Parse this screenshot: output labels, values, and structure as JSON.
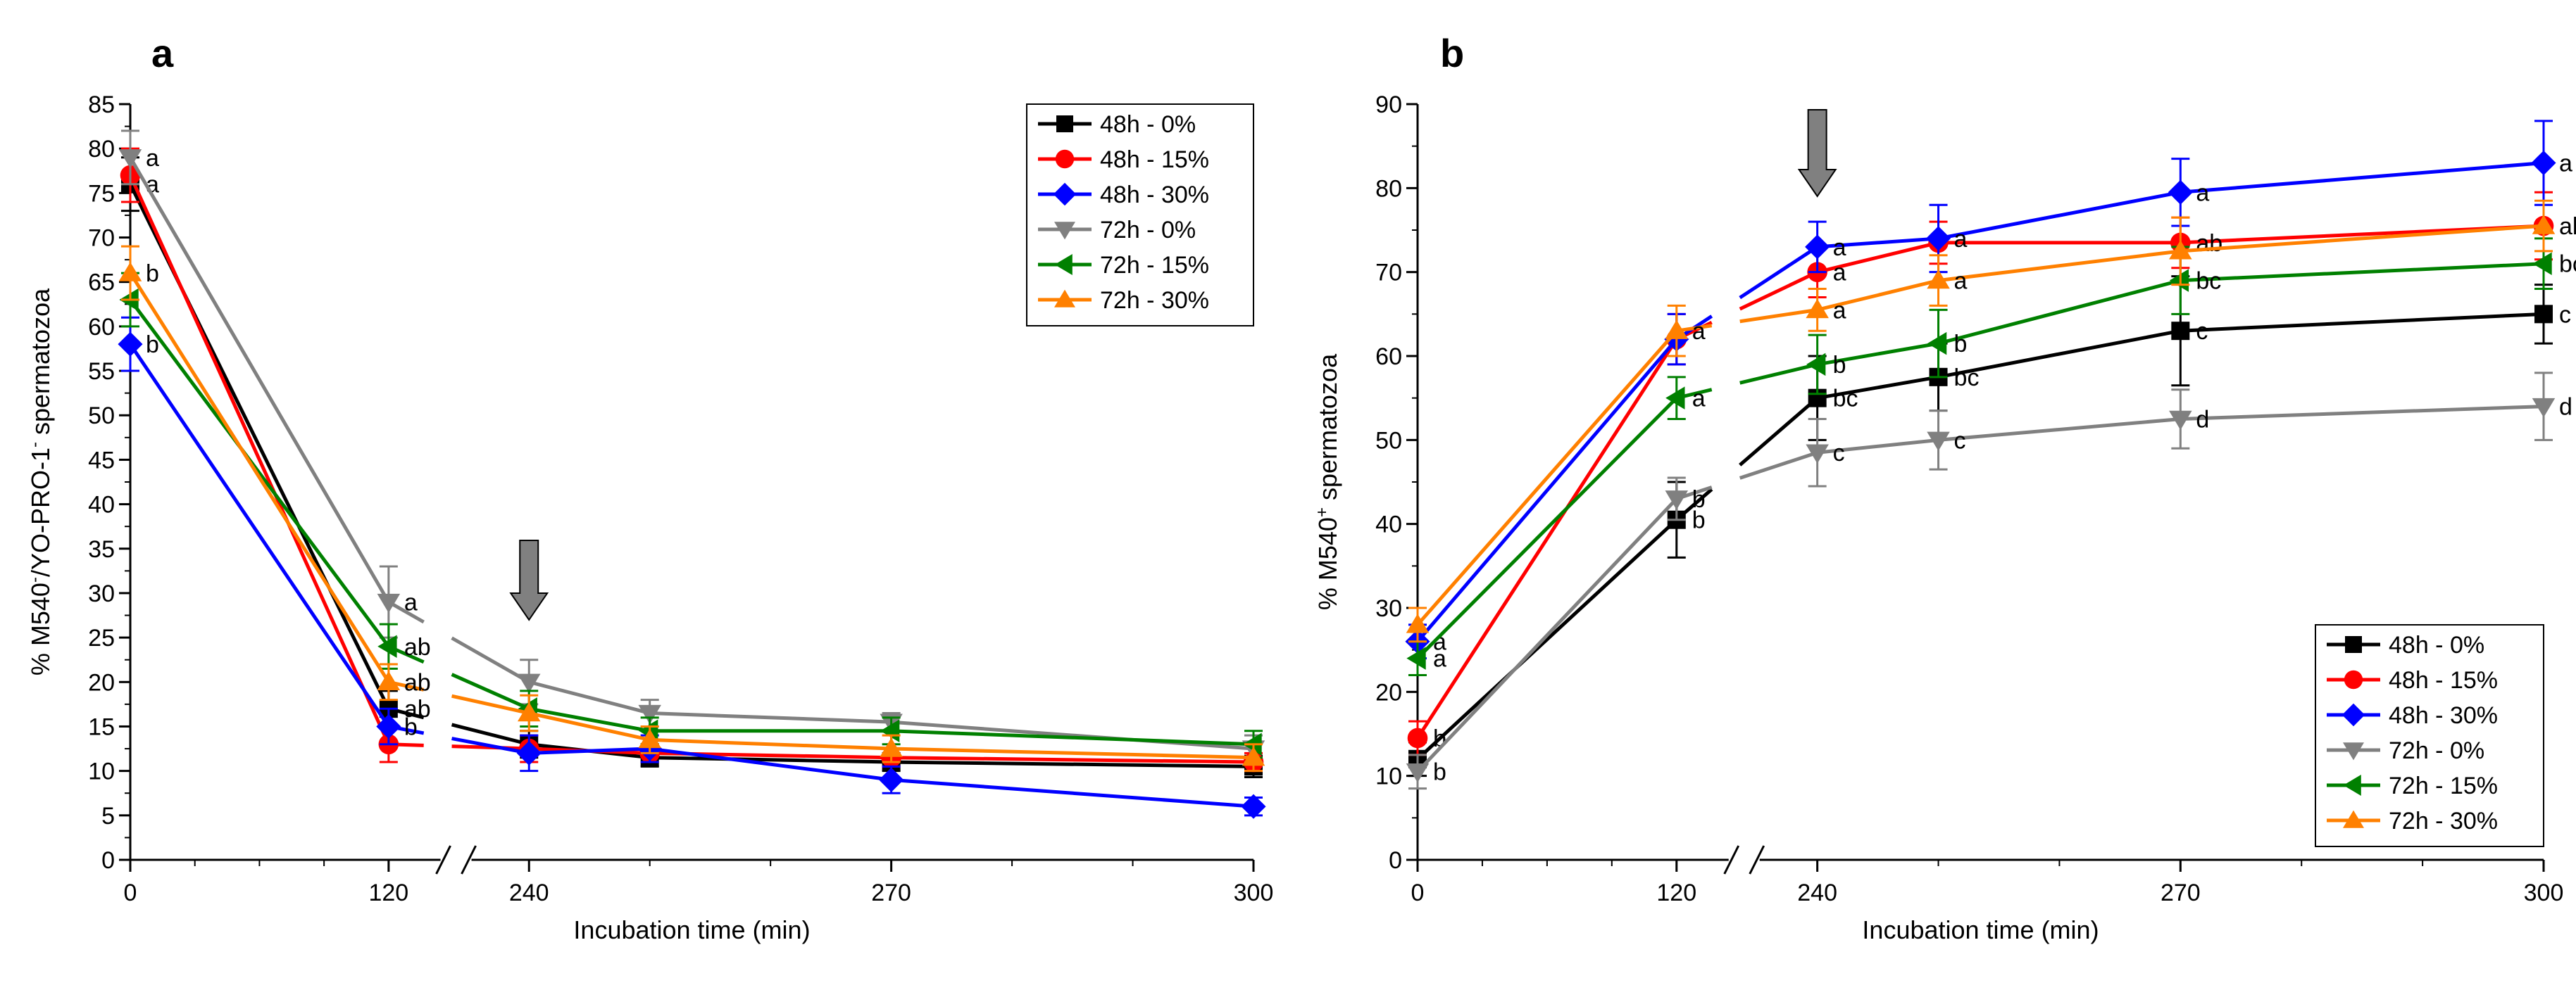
{
  "colors": {
    "48h - 0%": "#000000",
    "48h - 15%": "#ff0000",
    "48h - 30%": "#0000ff",
    "72h - 0%": "#808080",
    "72h - 15%": "#008000",
    "72h - 30%": "#ff8000",
    "arrow": "#808080"
  },
  "chart_data": [
    {
      "type": "line",
      "panel": "a",
      "title": "",
      "xlabel": "Incubation time (min)",
      "ylabel": "% M540⁻/YO-PRO-1⁻ spermatozoa",
      "ylabel_parts": [
        "% M540",
        "-",
        "/YO-PRO-1",
        "-",
        " spermatozoa"
      ],
      "ylim": [
        0,
        85
      ],
      "yticks": [
        0,
        5,
        10,
        15,
        20,
        25,
        30,
        35,
        40,
        45,
        50,
        55,
        60,
        65,
        70,
        75,
        80,
        85
      ],
      "x_tick_labels": [
        "0",
        "120",
        "240",
        "270",
        "300"
      ],
      "x_break": "between 120 and 240",
      "grid": false,
      "legend_position": "top-right",
      "arrow_at_x": 240,
      "series": [
        {
          "name": "48h - 0%",
          "marker": "square",
          "x": [
            0,
            120,
            240,
            250,
            270,
            300
          ],
          "values": [
            76,
            17,
            13,
            11.5,
            11,
            10.5
          ],
          "err": [
            3,
            2,
            1.5,
            1,
            1,
            1.2
          ],
          "labels": [
            "a",
            "ab",
            "",
            "",
            "",
            ""
          ]
        },
        {
          "name": "48h - 15%",
          "marker": "circle",
          "x": [
            0,
            120,
            240,
            250,
            270,
            300
          ],
          "values": [
            77,
            13,
            12.5,
            12,
            11.5,
            11
          ],
          "err": [
            3,
            2,
            1.5,
            1,
            1,
            1
          ]
        },
        {
          "name": "48h - 30%",
          "marker": "diamond",
          "x": [
            0,
            120,
            240,
            250,
            270,
            300
          ],
          "values": [
            58,
            15,
            12,
            12.5,
            9,
            6
          ],
          "err": [
            3,
            2,
            2,
            1.5,
            1.5,
            1
          ],
          "labels": [
            "b",
            "b",
            "",
            "",
            "",
            ""
          ]
        },
        {
          "name": "72h - 0%",
          "marker": "triangle-down",
          "x": [
            0,
            120,
            240,
            250,
            270,
            300
          ],
          "values": [
            79,
            29,
            20,
            16.5,
            15.5,
            12.5
          ],
          "err": [
            3,
            4,
            2.5,
            1.5,
            1,
            1.5
          ],
          "labels": [
            "a",
            "a",
            "",
            "",
            "",
            ""
          ]
        },
        {
          "name": "72h - 15%",
          "marker": "triangle-left",
          "x": [
            0,
            120,
            240,
            250,
            270,
            300
          ],
          "values": [
            63,
            24,
            17,
            14.5,
            14.5,
            13
          ],
          "err": [
            3,
            2.5,
            2,
            1.5,
            1.5,
            1.5
          ],
          "labels": [
            "",
            "ab",
            "",
            "",
            "",
            ""
          ]
        },
        {
          "name": "72h - 30%",
          "marker": "triangle-up",
          "x": [
            0,
            120,
            240,
            250,
            270,
            300
          ],
          "values": [
            66,
            20,
            16.5,
            13.5,
            12.5,
            11.5
          ],
          "err": [
            3,
            2,
            2,
            1.5,
            1.5,
            1.5
          ],
          "labels": [
            "b",
            "ab",
            "",
            "",
            "",
            ""
          ]
        }
      ]
    },
    {
      "type": "line",
      "panel": "b",
      "title": "",
      "xlabel": "Incubation time (min)",
      "ylabel": "% M540⁺ spermatozoa",
      "ylabel_parts": [
        "% M540",
        "+",
        " spermatozoa"
      ],
      "ylim": [
        0,
        90
      ],
      "yticks": [
        0,
        10,
        20,
        30,
        40,
        50,
        60,
        70,
        80,
        90
      ],
      "x_tick_labels": [
        "0",
        "120",
        "240",
        "270",
        "300"
      ],
      "x_break": "between 120 and 240",
      "grid": false,
      "legend_position": "bottom-right",
      "arrow_at_x": 240,
      "series": [
        {
          "name": "48h - 0%",
          "marker": "square",
          "x": [
            0,
            120,
            240,
            250,
            270,
            300
          ],
          "values": [
            12,
            40.5,
            55,
            57.5,
            63,
            65
          ],
          "err": [
            2,
            4.5,
            5,
            4,
            6.5,
            3.5
          ],
          "labels": [
            "",
            "b",
            "bc",
            "bc",
            "c",
            "c"
          ]
        },
        {
          "name": "48h - 15%",
          "marker": "circle",
          "x": [
            0,
            120,
            240,
            250,
            270,
            300
          ],
          "values": [
            14.5,
            62,
            70,
            73.5,
            73.5,
            75.5
          ],
          "err": [
            2,
            3,
            3,
            2.5,
            3,
            4
          ],
          "labels": [
            "b",
            "",
            "a",
            "",
            "ab",
            "ab"
          ]
        },
        {
          "name": "48h - 30%",
          "marker": "diamond",
          "x": [
            0,
            120,
            240,
            250,
            270,
            300
          ],
          "values": [
            26,
            62,
            73,
            74,
            79.5,
            83
          ],
          "err": [
            2,
            3,
            3,
            4,
            4,
            5
          ],
          "labels": [
            "a",
            "",
            "a",
            "a",
            "a",
            "a"
          ]
        },
        {
          "name": "72h - 0%",
          "marker": "triangle-down",
          "x": [
            0,
            120,
            240,
            250,
            270,
            300
          ],
          "values": [
            10.5,
            43,
            48.5,
            50,
            52.5,
            54
          ],
          "err": [
            2,
            2.5,
            4,
            3.5,
            3.5,
            4
          ],
          "labels": [
            "b",
            "b",
            "c",
            "c",
            "d",
            "d"
          ]
        },
        {
          "name": "72h - 15%",
          "marker": "triangle-left",
          "x": [
            0,
            120,
            240,
            250,
            270,
            300
          ],
          "values": [
            24,
            55,
            59,
            61.5,
            69,
            71
          ],
          "err": [
            2,
            2.5,
            3.5,
            4,
            4,
            3
          ],
          "labels": [
            "a",
            "a",
            "b",
            "b",
            "bc",
            "bc"
          ]
        },
        {
          "name": "72h - 30%",
          "marker": "triangle-up",
          "x": [
            0,
            120,
            240,
            250,
            270,
            300
          ],
          "values": [
            28,
            63,
            65.5,
            69,
            72.5,
            75.5
          ],
          "err": [
            2,
            3,
            2.5,
            3,
            4,
            3
          ],
          "labels": [
            "",
            "a",
            "a",
            "a",
            "",
            ""
          ]
        }
      ]
    }
  ]
}
